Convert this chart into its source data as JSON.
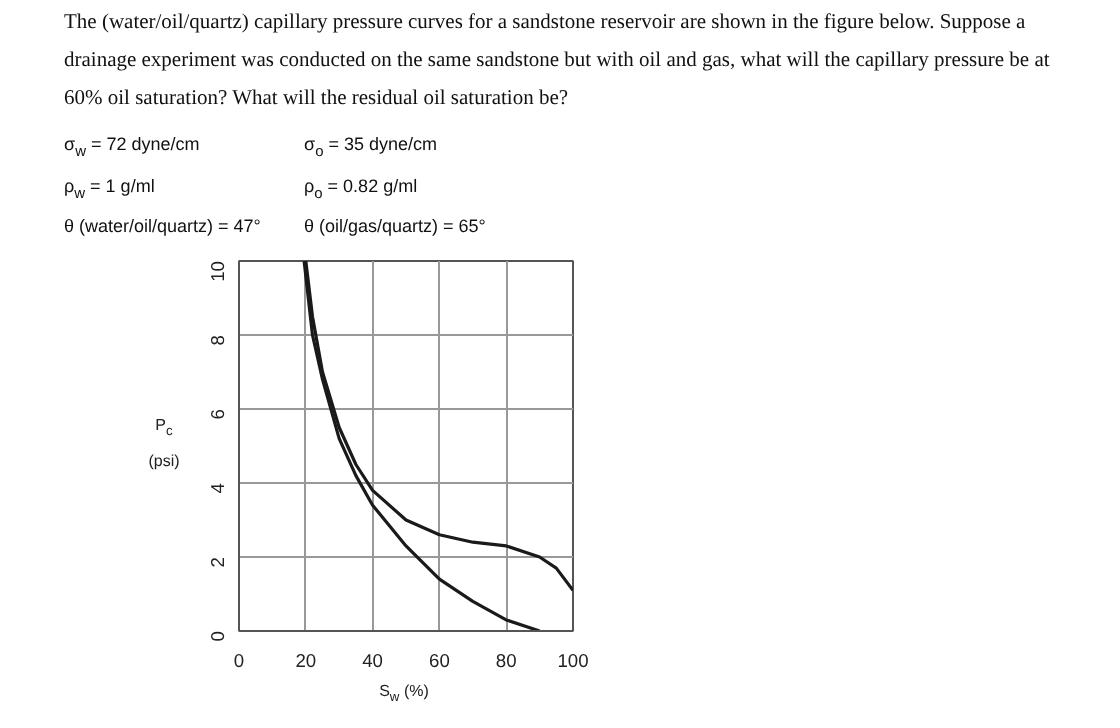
{
  "chart_data": {
    "type": "line",
    "title": "The (water/oil/quartz) capillary pressure curves for a sandstone reservoir are shown in the figure below. Suppose a drainage experiment was conducted on the same sandstone but with oil and gas, what will the capillary pressure be at 60% oil saturation? What will the residual oil saturation be?",
    "annotations": [
      "σ$_{w}$ = 72 dyne/cm",
      "σ$_{o}$ =  35 dyne/cm",
      "ρ$_{w}$ = 1 g/ml",
      "ρ$_{o}$ =  0.82 g/ml",
      "θ (water/oil/quartz) = 47°",
      "θ (oil/gas/quartz) = 65°"
    ],
    "xlabel": "S$_{w}$ (%)",
    "ylabel": "P$_{c}$ (psi)",
    "xlim": [
      0,
      100
    ],
    "ylim": [
      0,
      10
    ],
    "xticks": [
      0,
      20,
      40,
      60,
      80,
      100
    ],
    "yticks": [
      0,
      2,
      4,
      6,
      8,
      10
    ],
    "grid": true,
    "line_style": "solid",
    "series": [
      {
        "color": "#1a1a1a",
        "x": [
          20,
          22,
          25,
          30,
          35,
          40,
          50,
          60,
          70,
          80,
          90,
          95,
          100
        ],
        "values": [
          10,
          8.5,
          7,
          5.5,
          4.5,
          3.8,
          3.0,
          2.6,
          2.4,
          2.3,
          2.0,
          1.7,
          1.1
        ]
      },
      {
        "color": "#1a1a1a",
        "x": [
          19.5,
          22,
          25,
          30,
          35,
          40,
          50,
          60,
          70,
          80,
          90
        ],
        "values": [
          10,
          8,
          6.8,
          5.2,
          4.2,
          3.4,
          2.3,
          1.4,
          0.8,
          0.3,
          0
        ]
      }
    ]
  }
}
